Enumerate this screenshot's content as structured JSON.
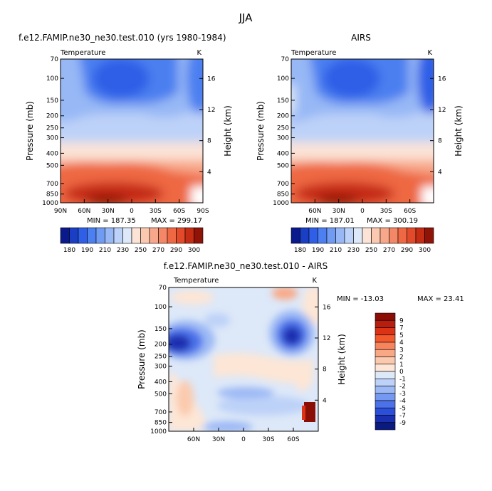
{
  "title": "JJA",
  "chart_data": [
    {
      "type": "heatmap",
      "title": "f.e12.FAMIP.ne30_ne30.test.010 (yrs 1980-1984)",
      "subtitle": "Temperature",
      "units": "K",
      "ylabel": "Pressure (mb)",
      "ylabel_right": "Height (km)",
      "x_ticks": [
        "90N",
        "60N",
        "30N",
        "0",
        "30S",
        "60S",
        "90S"
      ],
      "y_ticks": [
        "70",
        "100",
        "150",
        "200",
        "250",
        "300",
        "400",
        "500",
        "700",
        "850",
        "1000"
      ],
      "y2_ticks": [
        "16",
        "12",
        "8",
        "4"
      ],
      "ylim": [
        1000,
        70
      ],
      "xlim": [
        90,
        -90
      ],
      "scale": "log-pressure",
      "min_label": "MIN = 187.35",
      "max_label": "MAX = 299.17",
      "min": 187.35,
      "max": 299.17,
      "colorbar_ticks": [
        "180",
        "190",
        "210",
        "230",
        "250",
        "270",
        "290",
        "300"
      ]
    },
    {
      "type": "heatmap",
      "title": "AIRS",
      "subtitle": "Temperature",
      "units": "K",
      "ylabel": "Pressure (mb)",
      "ylabel_right": "Height (km)",
      "x_ticks": [
        "60N",
        "30N",
        "0",
        "30S",
        "60S"
      ],
      "y_ticks": [
        "70",
        "100",
        "150",
        "200",
        "250",
        "300",
        "400",
        "500",
        "700",
        "850",
        "1000"
      ],
      "y2_ticks": [
        "16",
        "12",
        "8",
        "4"
      ],
      "ylim": [
        1000,
        70
      ],
      "scale": "log-pressure",
      "min_label": "MIN = 187.01",
      "max_label": "MAX = 300.19",
      "min": 187.01,
      "max": 300.19,
      "colorbar_ticks": [
        "180",
        "190",
        "210",
        "230",
        "250",
        "270",
        "290",
        "300"
      ]
    },
    {
      "type": "heatmap",
      "title": "f.e12.FAMIP.ne30_ne30.test.010 - AIRS",
      "subtitle": "Temperature",
      "units": "K",
      "ylabel": "Pressure (mb)",
      "ylabel_right": "Height (km)",
      "x_ticks": [
        "60N",
        "30N",
        "0",
        "30S",
        "60S"
      ],
      "y_ticks": [
        "70",
        "100",
        "150",
        "200",
        "250",
        "300",
        "400",
        "500",
        "700",
        "850",
        "1000"
      ],
      "y2_ticks": [
        "16",
        "12",
        "8",
        "4"
      ],
      "ylim": [
        1000,
        70
      ],
      "scale": "log-pressure",
      "min_label": "MIN = -13.03",
      "max_label": "MAX =  23.41",
      "min": -13.03,
      "max": 23.41,
      "colorbar_ticks": [
        "9",
        "7",
        "5",
        "4",
        "3",
        "2",
        "1",
        "0",
        "-1",
        "-2",
        "-3",
        "-4",
        "-5",
        "-7",
        "-9"
      ]
    }
  ],
  "colors": {
    "abs_scale": [
      "#0a1a8c",
      "#1a3fc4",
      "#2f5fe6",
      "#4c7ff0",
      "#6f9cf2",
      "#97b8f5",
      "#bdd2f8",
      "#dde8f8",
      "#fbe3d6",
      "#fbc9b0",
      "#f8a88a",
      "#f48866",
      "#ee6843",
      "#e34a2a",
      "#c52c14",
      "#8f1306"
    ],
    "diff_scale": [
      "#8a0e06",
      "#b81e0e",
      "#dc3216",
      "#f25a2e",
      "#f7845c",
      "#f9a886",
      "#fbcaae",
      "#fde6d6",
      "#dde8f8",
      "#bdd2f8",
      "#9cb9f5",
      "#7598f0",
      "#4c72ea",
      "#2b4fd8",
      "#1a2fb0",
      "#0b1a80"
    ]
  }
}
